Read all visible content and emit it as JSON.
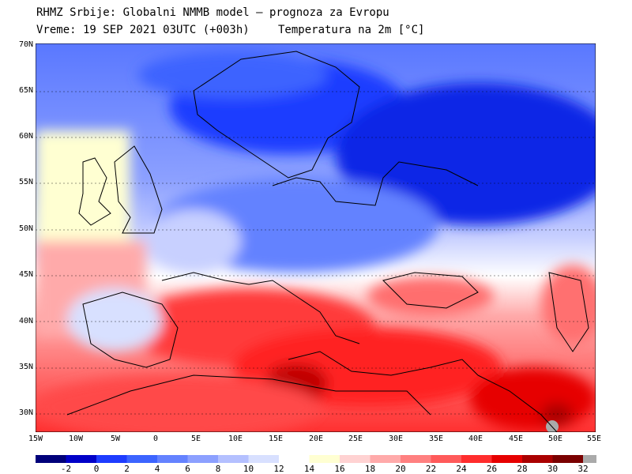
{
  "header": {
    "line1": "RHMZ Srbije: Globalni NMMB model — prognoza za Evropu",
    "line2": "Vreme: 19 SEP 2021 03UTC (+003h)",
    "line3": "Temperatura na 2m [°C]"
  },
  "axes": {
    "lat_labels": [
      "70N",
      "65N",
      "60N",
      "55N",
      "50N",
      "45N",
      "40N",
      "35N",
      "30N"
    ],
    "lon_labels": [
      "15W",
      "10W",
      "5W",
      "0",
      "5E",
      "10E",
      "15E",
      "20E",
      "25E",
      "30E",
      "35E",
      "40E",
      "45E",
      "50E",
      "55E"
    ]
  },
  "colorbar": {
    "labels": [
      "-2",
      "0",
      "2",
      "4",
      "6",
      "8",
      "10",
      "12",
      "14",
      "16",
      "18",
      "20",
      "22",
      "24",
      "26",
      "28",
      "30",
      "32"
    ],
    "colors": [
      "#00007a",
      "#0000c8",
      "#1e3cff",
      "#3c64ff",
      "#6482ff",
      "#8ca0ff",
      "#b4c0ff",
      "#d8e0ff",
      "#ffffff",
      "#ffffd2",
      "#ffd2d2",
      "#ffaaaa",
      "#ff8080",
      "#ff5a5a",
      "#ff2d2d",
      "#e60000",
      "#aa0000",
      "#7a0000",
      "#aaaaaa"
    ]
  },
  "regions": {
    "north": "cold",
    "mediterranean": "warm",
    "north_africa": "hot"
  }
}
